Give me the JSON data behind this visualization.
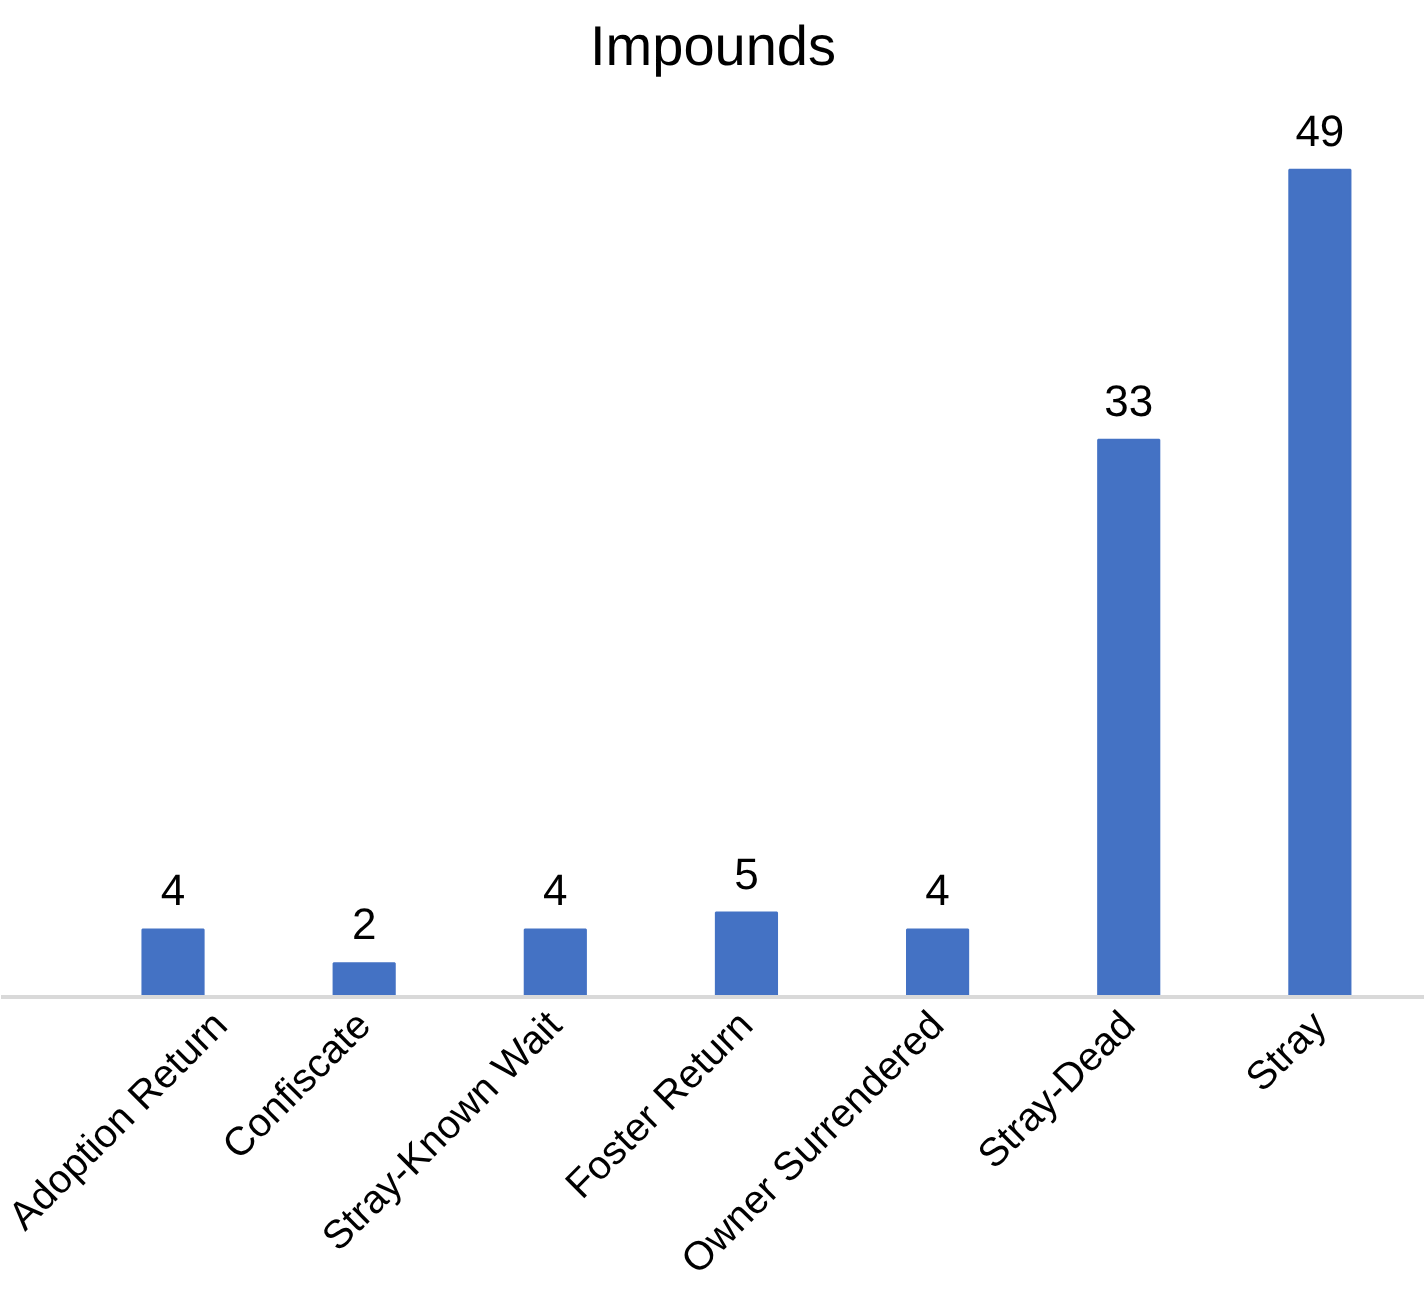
{
  "chart_data": {
    "type": "bar",
    "title": "Impounds",
    "categories": [
      "Adoption Return",
      "Confiscate",
      "Stray-Known Wait",
      "Foster Return",
      "Owner Surrendered",
      "Stray-Dead",
      "Stray"
    ],
    "values": [
      4,
      2,
      4,
      5,
      4,
      33,
      49
    ],
    "color": "#4472c4",
    "data_labels": true
  }
}
